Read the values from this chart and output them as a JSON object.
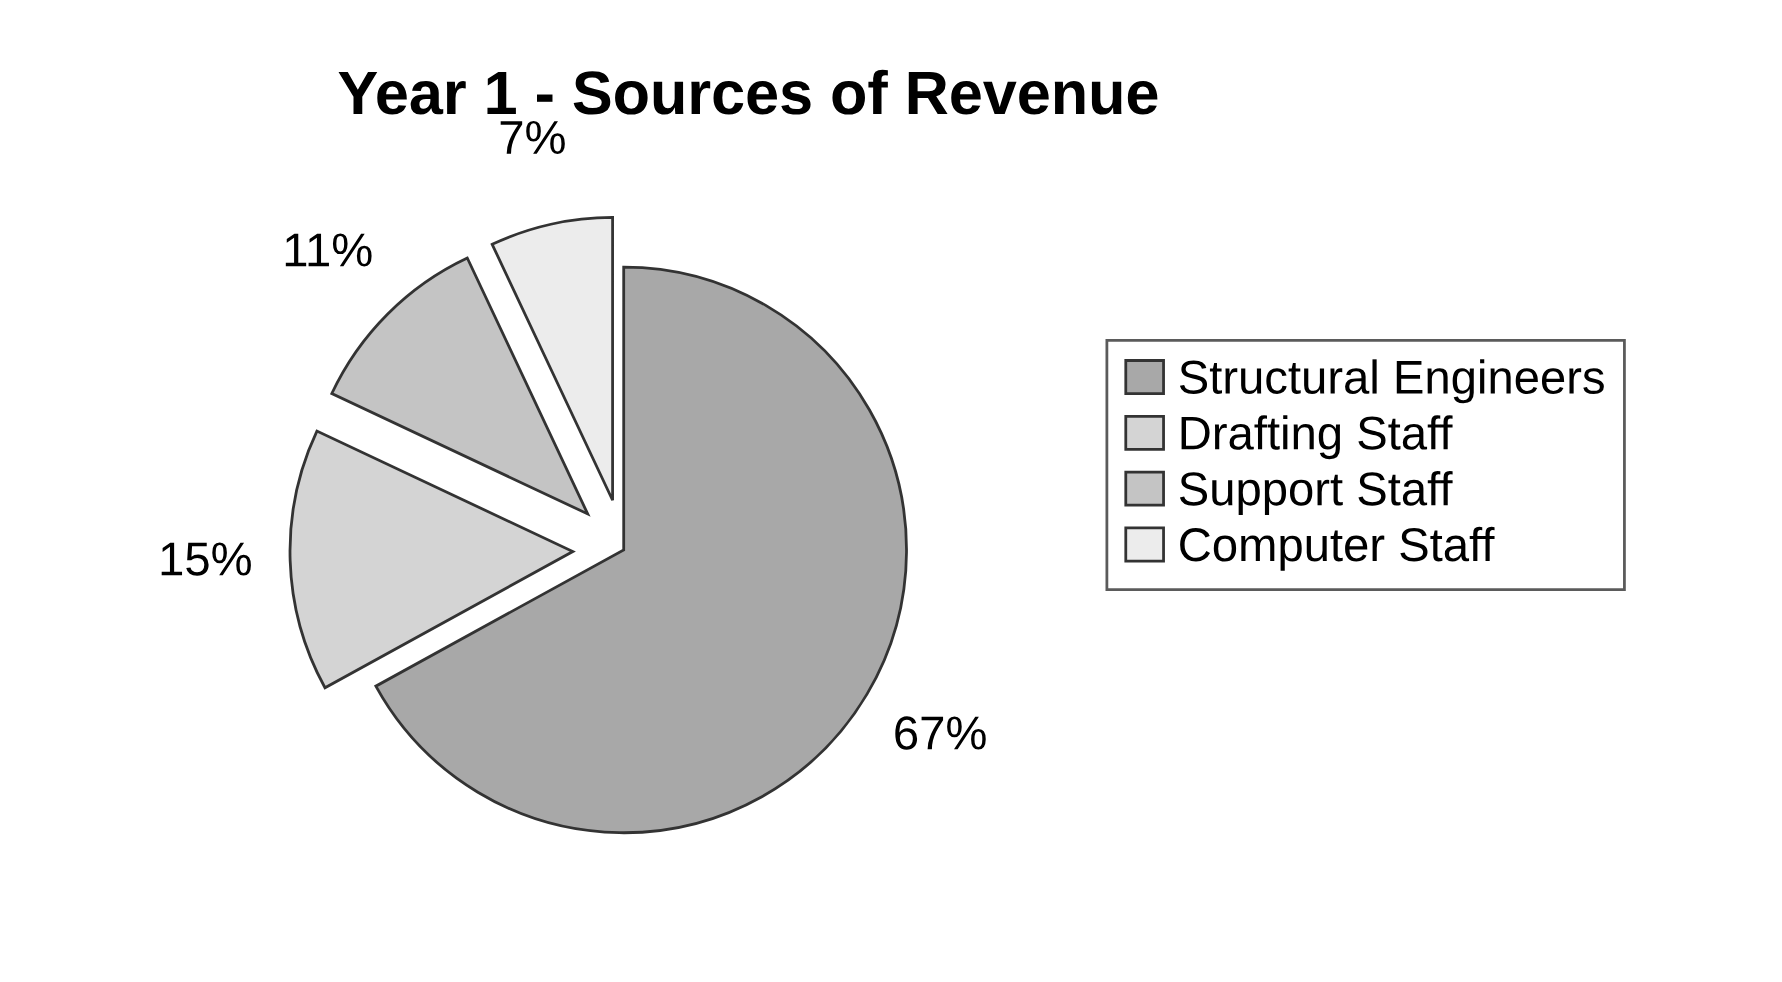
{
  "chart_data": {
    "type": "pie",
    "title": "Year 1 - Sources of Revenue",
    "categories": [
      "Structural Engineers",
      "Drafting Staff",
      "Support Staff",
      "Computer Staff"
    ],
    "values": [
      67,
      15,
      11,
      7
    ],
    "value_labels": [
      "67%",
      "15%",
      "11%",
      "7%"
    ],
    "colors": [
      "#a8a8a8",
      "#d4d4d4",
      "#c4c4c4",
      "#ececec"
    ],
    "legend": "right"
  }
}
